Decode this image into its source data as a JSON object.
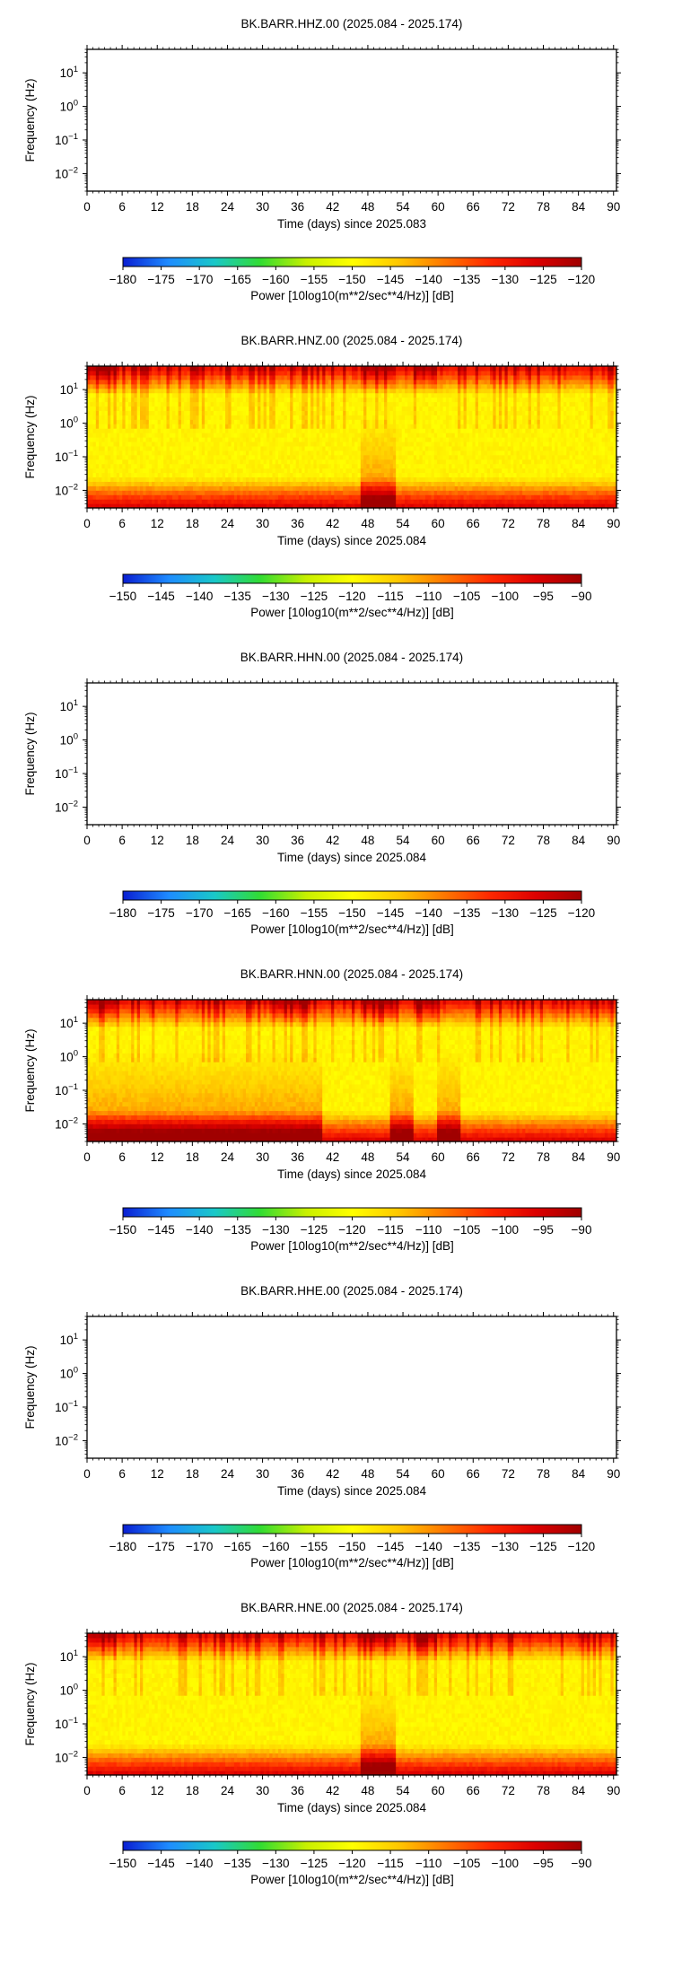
{
  "colors": {
    "background": "#ffffff",
    "frame": "#000000",
    "colormap": [
      "#0a1ed2",
      "#1e8cff",
      "#19c8c8",
      "#32dc32",
      "#c8f000",
      "#ffff00",
      "#ffc800",
      "#ff7800",
      "#ff2800",
      "#dc0000",
      "#a00000"
    ]
  },
  "chart_data": [
    {
      "type": "heatmap",
      "title": "BK.BARR.HHZ.00 (2025.084 - 2025.174)",
      "xlabel": "Time (days) since 2025.083",
      "ylabel": "Frequency (Hz)",
      "xlim": [
        0,
        90.5
      ],
      "xticks": [
        "0",
        "6",
        "12",
        "18",
        "24",
        "30",
        "36",
        "42",
        "48",
        "54",
        "60",
        "66",
        "72",
        "78",
        "84",
        "90"
      ],
      "y_scale": "log",
      "ylim_hz": [
        0.003,
        50
      ],
      "yticks": [
        {
          "base": "10",
          "exp": "1"
        },
        {
          "base": "10",
          "exp": "0"
        },
        {
          "base": "10",
          "exp": "−1"
        },
        {
          "base": "10",
          "exp": "−2"
        }
      ],
      "has_data": false,
      "colorbar": {
        "range": [
          -180,
          -120
        ],
        "ticks": [
          "−180",
          "−175",
          "−170",
          "−165",
          "−160",
          "−155",
          "−150",
          "−145",
          "−140",
          "−135",
          "−130",
          "−125",
          "−120"
        ],
        "label": "Power [10log10(m**2/sec**4/Hz)] [dB]"
      }
    },
    {
      "type": "heatmap",
      "title": "BK.BARR.HNZ.00 (2025.084 - 2025.174)",
      "xlabel": "Time (days) since 2025.084",
      "ylabel": "Frequency (Hz)",
      "xlim": [
        0,
        90.5
      ],
      "xticks": [
        "0",
        "6",
        "12",
        "18",
        "24",
        "30",
        "36",
        "42",
        "48",
        "54",
        "60",
        "66",
        "72",
        "78",
        "84",
        "90"
      ],
      "y_scale": "log",
      "ylim_hz": [
        0.003,
        50
      ],
      "yticks": [
        {
          "base": "10",
          "exp": "1"
        },
        {
          "base": "10",
          "exp": "0"
        },
        {
          "base": "10",
          "exp": "−1"
        },
        {
          "base": "10",
          "exp": "−2"
        }
      ],
      "has_data": true,
      "data_summary": {
        "high_power_low_freq_days": [
          [
            47,
            53
          ]
        ],
        "high_power_high_freq_days": [
          [
            0,
            5
          ],
          [
            47,
            53
          ],
          [
            56,
            60
          ]
        ]
      },
      "colorbar": {
        "range": [
          -150,
          -90
        ],
        "ticks": [
          "−150",
          "−145",
          "−140",
          "−135",
          "−130",
          "−125",
          "−120",
          "−115",
          "−110",
          "−105",
          "−100",
          "−95",
          "−90"
        ],
        "label": "Power [10log10(m**2/sec**4/Hz)] [dB]"
      }
    },
    {
      "type": "heatmap",
      "title": "BK.BARR.HHN.00 (2025.084 - 2025.174)",
      "xlabel": "Time (days) since 2025.084",
      "ylabel": "Frequency (Hz)",
      "xlim": [
        0,
        90.5
      ],
      "xticks": [
        "0",
        "6",
        "12",
        "18",
        "24",
        "30",
        "36",
        "42",
        "48",
        "54",
        "60",
        "66",
        "72",
        "78",
        "84",
        "90"
      ],
      "y_scale": "log",
      "ylim_hz": [
        0.003,
        50
      ],
      "yticks": [
        {
          "base": "10",
          "exp": "1"
        },
        {
          "base": "10",
          "exp": "0"
        },
        {
          "base": "10",
          "exp": "−1"
        },
        {
          "base": "10",
          "exp": "−2"
        }
      ],
      "has_data": false,
      "colorbar": {
        "range": [
          -180,
          -120
        ],
        "ticks": [
          "−180",
          "−175",
          "−170",
          "−165",
          "−160",
          "−155",
          "−150",
          "−145",
          "−140",
          "−135",
          "−130",
          "−125",
          "−120"
        ],
        "label": "Power [10log10(m**2/sec**4/Hz)] [dB]"
      }
    },
    {
      "type": "heatmap",
      "title": "BK.BARR.HNN.00 (2025.084 - 2025.174)",
      "xlabel": "Time (days) since 2025.084",
      "ylabel": "Frequency (Hz)",
      "xlim": [
        0,
        90.5
      ],
      "xticks": [
        "0",
        "6",
        "12",
        "18",
        "24",
        "30",
        "36",
        "42",
        "48",
        "54",
        "60",
        "66",
        "72",
        "78",
        "84",
        "90"
      ],
      "y_scale": "log",
      "ylim_hz": [
        0.003,
        50
      ],
      "yticks": [
        {
          "base": "10",
          "exp": "1"
        },
        {
          "base": "10",
          "exp": "0"
        },
        {
          "base": "10",
          "exp": "−1"
        },
        {
          "base": "10",
          "exp": "−2"
        }
      ],
      "has_data": true,
      "data_summary": {
        "high_power_low_freq_days": [
          [
            0,
            40
          ],
          [
            52,
            56
          ],
          [
            60,
            64
          ]
        ],
        "high_power_high_freq_days": [
          [
            0,
            5
          ],
          [
            32,
            38
          ],
          [
            47,
            53
          ],
          [
            56,
            60
          ]
        ]
      },
      "colorbar": {
        "range": [
          -150,
          -90
        ],
        "ticks": [
          "−150",
          "−145",
          "−140",
          "−135",
          "−130",
          "−125",
          "−120",
          "−115",
          "−110",
          "−105",
          "−100",
          "−95",
          "−90"
        ],
        "label": "Power [10log10(m**2/sec**4/Hz)] [dB]"
      }
    },
    {
      "type": "heatmap",
      "title": "BK.BARR.HHE.00 (2025.084 - 2025.174)",
      "xlabel": "Time (days) since 2025.084",
      "ylabel": "Frequency (Hz)",
      "xlim": [
        0,
        90.5
      ],
      "xticks": [
        "0",
        "6",
        "12",
        "18",
        "24",
        "30",
        "36",
        "42",
        "48",
        "54",
        "60",
        "66",
        "72",
        "78",
        "84",
        "90"
      ],
      "y_scale": "log",
      "ylim_hz": [
        0.003,
        50
      ],
      "yticks": [
        {
          "base": "10",
          "exp": "1"
        },
        {
          "base": "10",
          "exp": "0"
        },
        {
          "base": "10",
          "exp": "−1"
        },
        {
          "base": "10",
          "exp": "−2"
        }
      ],
      "has_data": false,
      "colorbar": {
        "range": [
          -180,
          -120
        ],
        "ticks": [
          "−180",
          "−175",
          "−170",
          "−165",
          "−160",
          "−155",
          "−150",
          "−145",
          "−140",
          "−135",
          "−130",
          "−125",
          "−120"
        ],
        "label": "Power [10log10(m**2/sec**4/Hz)] [dB]"
      }
    },
    {
      "type": "heatmap",
      "title": "BK.BARR.HNE.00 (2025.084 - 2025.174)",
      "xlabel": "Time (days) since 2025.084",
      "ylabel": "Frequency (Hz)",
      "xlim": [
        0,
        90.5
      ],
      "xticks": [
        "0",
        "6",
        "12",
        "18",
        "24",
        "30",
        "36",
        "42",
        "48",
        "54",
        "60",
        "66",
        "72",
        "78",
        "84",
        "90"
      ],
      "y_scale": "log",
      "ylim_hz": [
        0.003,
        50
      ],
      "yticks": [
        {
          "base": "10",
          "exp": "1"
        },
        {
          "base": "10",
          "exp": "0"
        },
        {
          "base": "10",
          "exp": "−1"
        },
        {
          "base": "10",
          "exp": "−2"
        }
      ],
      "has_data": true,
      "data_summary": {
        "high_power_low_freq_days": [
          [
            47,
            53
          ]
        ],
        "high_power_high_freq_days": [
          [
            0,
            5
          ],
          [
            47,
            53
          ],
          [
            56,
            60
          ]
        ]
      },
      "colorbar": {
        "range": [
          -150,
          -90
        ],
        "ticks": [
          "−150",
          "−145",
          "−140",
          "−135",
          "−130",
          "−125",
          "−120",
          "−115",
          "−110",
          "−105",
          "−100",
          "−95",
          "−90"
        ],
        "label": "Power [10log10(m**2/sec**4/Hz)] [dB]"
      }
    }
  ]
}
